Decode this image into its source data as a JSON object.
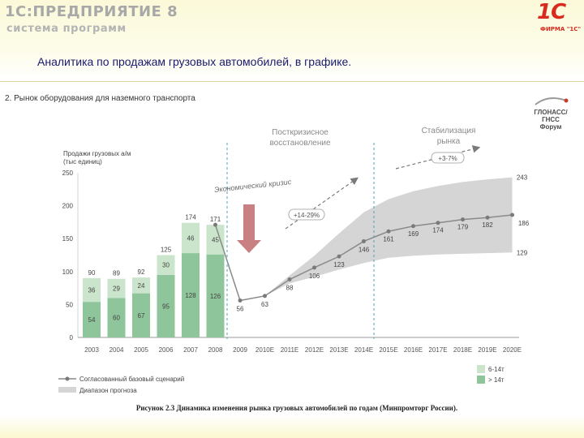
{
  "header": {
    "brand_title": "1С:ПРЕДПРИЯТИЕ 8",
    "brand_subtitle": "система программ",
    "logo_mark": "1С",
    "logo_caption": "ФИРМА \"1С\"",
    "slide_title": "Аналитика по продажам грузовых автомобилей, в графике."
  },
  "figure": {
    "section_title": "2. Рынок оборудования для наземного транспорта",
    "partner_logo_line1": "ГЛОНАСС/ГНСС",
    "partner_logo_line2": "Форум",
    "caption": "Рисунок 2.3 Динамика изменения рынка грузовых автомобилей по годам (Минпромторг России)."
  },
  "chart_data": {
    "type": "bar",
    "ylabel_line1": "Продажи грузовых а/м",
    "ylabel_line2": "(тыс единиц)",
    "ylim": [
      0,
      250
    ],
    "yticks": [
      "0",
      "50",
      "100",
      "150",
      "200",
      "250"
    ],
    "categories": [
      "2003",
      "2004",
      "2005",
      "2006",
      "2007",
      "2008",
      "2009",
      "2010E",
      "2011E",
      "2012E",
      "2013E",
      "2014E",
      "2015E",
      "2016E",
      "2017E",
      "2018E",
      "2019E",
      "2020E"
    ],
    "bar_series": [
      {
        "name": "> 14т",
        "values": [
          54,
          60,
          67,
          95,
          128,
          126
        ],
        "labels": [
          "54",
          "60",
          "67",
          "95",
          "128",
          "126"
        ]
      },
      {
        "name": "6-14т",
        "values": [
          36,
          29,
          24,
          30,
          46,
          45
        ],
        "labels": [
          "36",
          "29",
          "24",
          "30",
          "46",
          "45"
        ]
      }
    ],
    "bar_totals": [
      "90",
      "89",
      "92",
      "125",
      "174",
      "171"
    ],
    "line_series": {
      "name": "Согласованный базовый сценарий",
      "points": [
        {
          "x": "2008",
          "y": 171
        },
        {
          "x": "2009",
          "y": 56
        },
        {
          "x": "2010E",
          "y": 63
        },
        {
          "x": "2011E",
          "y": 88
        },
        {
          "x": "2012E",
          "y": 106
        },
        {
          "x": "2013E",
          "y": 123
        },
        {
          "x": "2014E",
          "y": 146
        },
        {
          "x": "2015E",
          "y": 161
        },
        {
          "x": "2016E",
          "y": 169
        },
        {
          "x": "2017E",
          "y": 174
        },
        {
          "x": "2018E",
          "y": 179
        },
        {
          "x": "2019E",
          "y": 182
        },
        {
          "x": "2020E",
          "y": 186
        }
      ],
      "labels": [
        "",
        "56",
        "63",
        "88",
        "106",
        "123",
        "146",
        "161",
        "169",
        "174",
        "179",
        "182",
        "186"
      ]
    },
    "range_band": {
      "name": "Диапазон прогноза",
      "categories": [
        "2010E",
        "2011E",
        "2012E",
        "2013E",
        "2014E",
        "2015E",
        "2016E",
        "2017E",
        "2018E",
        "2019E",
        "2020E"
      ],
      "upper": [
        63,
        94,
        124,
        158,
        190,
        210,
        222,
        230,
        236,
        240,
        243
      ],
      "lower": [
        63,
        82,
        92,
        103,
        113,
        121,
        124,
        126,
        127,
        128,
        129
      ],
      "end_labels": [
        "243",
        "129"
      ]
    },
    "annotations": {
      "crisis": "Экономический кризис",
      "phase1_line1": "Посткризисное",
      "phase1_line2": "восстановление",
      "phase1_rate": "+14-29%",
      "phase2_line1": "Стабилизация",
      "phase2_line2": "рынка",
      "phase2_rate": "+3-7%"
    },
    "legend": {
      "bar_light": "6-14т",
      "bar_dark": "> 14т",
      "line": "Согласованный базовый сценарий",
      "band": "Диапазон прогноза"
    },
    "colors": {
      "bar_dark": "#8fc59b",
      "bar_light": "#cbe5cc",
      "band": "#d5d5d5",
      "line": "#8a8a8a",
      "crisis_arrow": "#c88082",
      "divider": "#4ba3b8"
    }
  }
}
